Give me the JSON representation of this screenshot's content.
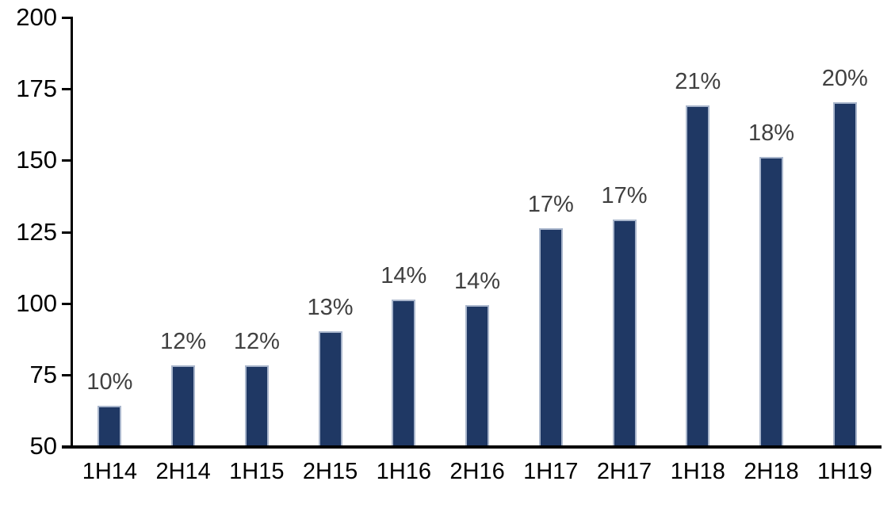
{
  "chart_data": {
    "type": "bar",
    "categories": [
      "1H14",
      "2H14",
      "1H15",
      "2H15",
      "1H16",
      "2H16",
      "1H17",
      "2H17",
      "1H18",
      "2H18",
      "1H19"
    ],
    "values": [
      64,
      78,
      78,
      90,
      101,
      99,
      126,
      129,
      169,
      151,
      170
    ],
    "bar_labels": [
      "10%",
      "12%",
      "12%",
      "13%",
      "14%",
      "14%",
      "17%",
      "17%",
      "21%",
      "18%",
      "20%"
    ],
    "title": "",
    "xlabel": "",
    "ylabel": "",
    "ylim": [
      50,
      200
    ],
    "y_ticks": [
      50,
      75,
      100,
      125,
      150,
      175,
      200
    ],
    "grid": false,
    "legend_position": "none",
    "colors": {
      "bar_fill": "#1F3864",
      "bar_border": "#A9B6CC",
      "data_label": "#404040",
      "axis_line": "#000000",
      "axis_label": "#000000",
      "background": "#FFFFFF"
    }
  }
}
